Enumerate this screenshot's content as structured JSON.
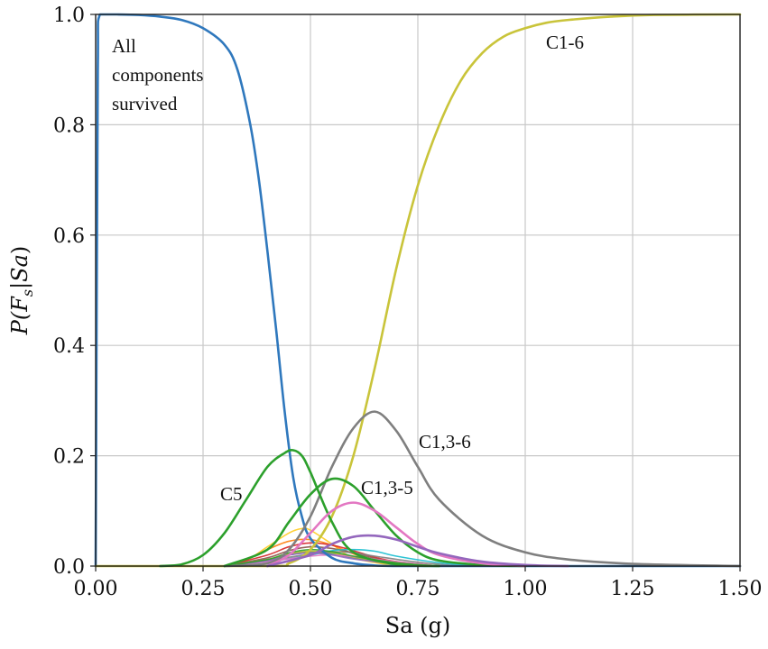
{
  "chart_data": {
    "type": "line",
    "title": "",
    "xlabel": "Sa (g)",
    "ylabel": "P(F_s|Sa)",
    "ylabel_parts": {
      "p": "P(",
      "f": "F",
      "s": "s",
      "mid": "|",
      "sa": "Sa",
      "close": ")"
    },
    "xlim": [
      0.0,
      1.5
    ],
    "ylim": [
      0.0,
      1.0
    ],
    "grid": true,
    "x_ticks": [
      "0.00",
      "0.25",
      "0.50",
      "0.75",
      "1.00",
      "1.25",
      "1.50"
    ],
    "y_ticks": [
      "0.0",
      "0.2",
      "0.4",
      "0.6",
      "0.8",
      "1.0"
    ],
    "annotations": {
      "all_line1": "All",
      "all_line2": "components",
      "all_line3": "survived",
      "c16": "C1-6",
      "c136": "C1,3-6",
      "c135": "C1,3-5",
      "c5": "C5"
    },
    "series": [
      {
        "id": "all-survived",
        "color": "#2f78bd",
        "x": [
          0.0,
          0.005,
          0.01,
          0.05,
          0.1,
          0.15,
          0.2,
          0.25,
          0.3,
          0.33,
          0.36,
          0.38,
          0.4,
          0.42,
          0.44,
          0.46,
          0.48,
          0.5,
          0.55,
          0.6,
          0.65,
          0.7,
          0.75,
          0.8,
          0.9,
          1.0,
          1.5
        ],
        "values": [
          0.0,
          0.9,
          1.0,
          1.0,
          0.999,
          0.996,
          0.99,
          0.975,
          0.945,
          0.9,
          0.8,
          0.7,
          0.57,
          0.43,
          0.28,
          0.16,
          0.09,
          0.05,
          0.015,
          0.005,
          0.001,
          0.0,
          0.0,
          0.0,
          0.0,
          0.0,
          0.0
        ]
      },
      {
        "id": "c1-6",
        "color": "#c9c43a",
        "x": [
          0.0,
          0.4,
          0.45,
          0.5,
          0.55,
          0.6,
          0.65,
          0.7,
          0.75,
          0.8,
          0.85,
          0.9,
          0.95,
          1.0,
          1.05,
          1.1,
          1.2,
          1.3,
          1.5
        ],
        "values": [
          0.0,
          0.0,
          0.005,
          0.03,
          0.09,
          0.2,
          0.36,
          0.54,
          0.69,
          0.8,
          0.88,
          0.93,
          0.96,
          0.975,
          0.985,
          0.99,
          0.996,
          0.999,
          1.0
        ]
      },
      {
        "id": "c1-3-6",
        "color": "#7f7f7f",
        "x": [
          0.3,
          0.4,
          0.45,
          0.5,
          0.55,
          0.6,
          0.65,
          0.7,
          0.75,
          0.8,
          0.9,
          1.0,
          1.1,
          1.25,
          1.5
        ],
        "values": [
          0.0,
          0.005,
          0.03,
          0.09,
          0.18,
          0.25,
          0.28,
          0.245,
          0.18,
          0.12,
          0.055,
          0.025,
          0.012,
          0.004,
          0.0
        ]
      },
      {
        "id": "c5",
        "color": "#2ca02c",
        "x": [
          0.15,
          0.2,
          0.25,
          0.3,
          0.35,
          0.4,
          0.44,
          0.46,
          0.48,
          0.5,
          0.55,
          0.6,
          0.7,
          0.8
        ],
        "values": [
          0.0,
          0.003,
          0.02,
          0.06,
          0.12,
          0.18,
          0.205,
          0.21,
          0.2,
          0.17,
          0.08,
          0.025,
          0.003,
          0.0
        ]
      },
      {
        "id": "c1-3-5",
        "color": "#2ca02c",
        "x": [
          0.3,
          0.4,
          0.45,
          0.5,
          0.55,
          0.6,
          0.65,
          0.7,
          0.75,
          0.8,
          0.9,
          1.0
        ],
        "values": [
          0.0,
          0.03,
          0.08,
          0.13,
          0.158,
          0.145,
          0.1,
          0.055,
          0.025,
          0.01,
          0.002,
          0.0
        ]
      },
      {
        "id": "pink",
        "color": "#e377c2",
        "x": [
          0.4,
          0.45,
          0.5,
          0.55,
          0.6,
          0.65,
          0.7,
          0.75,
          0.8,
          0.9,
          1.0
        ],
        "values": [
          0.0,
          0.02,
          0.06,
          0.1,
          0.115,
          0.1,
          0.07,
          0.04,
          0.02,
          0.005,
          0.0
        ]
      },
      {
        "id": "purple",
        "color": "#9467bd",
        "x": [
          0.4,
          0.5,
          0.55,
          0.6,
          0.65,
          0.7,
          0.75,
          0.8,
          0.9,
          1.0,
          1.1
        ],
        "values": [
          0.0,
          0.02,
          0.04,
          0.053,
          0.055,
          0.048,
          0.035,
          0.023,
          0.008,
          0.002,
          0.0
        ]
      },
      {
        "id": "yellow-small",
        "color": "#ffcc22",
        "x": [
          0.3,
          0.35,
          0.4,
          0.45,
          0.48,
          0.5,
          0.55,
          0.6,
          0.7
        ],
        "values": [
          0.0,
          0.01,
          0.035,
          0.06,
          0.068,
          0.065,
          0.04,
          0.015,
          0.0
        ]
      },
      {
        "id": "orange",
        "color": "#ff7f0e",
        "x": [
          0.3,
          0.35,
          0.4,
          0.45,
          0.5,
          0.55,
          0.6,
          0.65,
          0.75
        ],
        "values": [
          0.0,
          0.012,
          0.03,
          0.045,
          0.048,
          0.038,
          0.022,
          0.01,
          0.0
        ]
      },
      {
        "id": "red",
        "color": "#d62728",
        "x": [
          0.3,
          0.4,
          0.45,
          0.5,
          0.55,
          0.6,
          0.65,
          0.7,
          0.8
        ],
        "values": [
          0.0,
          0.02,
          0.035,
          0.042,
          0.038,
          0.028,
          0.016,
          0.008,
          0.0
        ]
      },
      {
        "id": "brown",
        "color": "#8c564b",
        "x": [
          0.3,
          0.4,
          0.45,
          0.5,
          0.55,
          0.6,
          0.65,
          0.7,
          0.8
        ],
        "values": [
          0.0,
          0.015,
          0.028,
          0.035,
          0.032,
          0.024,
          0.014,
          0.006,
          0.0
        ]
      },
      {
        "id": "cyan",
        "color": "#17becf",
        "x": [
          0.3,
          0.4,
          0.5,
          0.55,
          0.6,
          0.65,
          0.7,
          0.8,
          0.9
        ],
        "values": [
          0.0,
          0.008,
          0.02,
          0.028,
          0.03,
          0.027,
          0.018,
          0.006,
          0.0
        ]
      },
      {
        "id": "blue-small",
        "color": "#1f77b4",
        "x": [
          0.3,
          0.4,
          0.45,
          0.5,
          0.55,
          0.6,
          0.7,
          0.8
        ],
        "values": [
          0.0,
          0.01,
          0.02,
          0.025,
          0.022,
          0.015,
          0.005,
          0.0
        ]
      },
      {
        "id": "olive",
        "color": "#bcbd22",
        "x": [
          0.3,
          0.4,
          0.45,
          0.5,
          0.55,
          0.6,
          0.7,
          0.8
        ],
        "values": [
          0.0,
          0.012,
          0.022,
          0.027,
          0.024,
          0.016,
          0.006,
          0.0
        ]
      },
      {
        "id": "grey-small",
        "color": "#7f7f7f",
        "x": [
          0.3,
          0.4,
          0.5,
          0.55,
          0.6,
          0.65,
          0.75,
          0.85
        ],
        "values": [
          0.0,
          0.01,
          0.022,
          0.026,
          0.024,
          0.018,
          0.007,
          0.0
        ]
      },
      {
        "id": "pink-small",
        "color": "#e377c2",
        "x": [
          0.3,
          0.4,
          0.5,
          0.55,
          0.6,
          0.7,
          0.8
        ],
        "values": [
          0.0,
          0.008,
          0.018,
          0.02,
          0.017,
          0.008,
          0.0
        ]
      },
      {
        "id": "purple-small",
        "color": "#9467bd",
        "x": [
          0.3,
          0.4,
          0.45,
          0.5,
          0.55,
          0.6,
          0.7,
          0.8
        ],
        "values": [
          0.0,
          0.01,
          0.02,
          0.024,
          0.02,
          0.013,
          0.004,
          0.0
        ]
      },
      {
        "id": "green-small",
        "color": "#2ca02c",
        "x": [
          0.3,
          0.4,
          0.45,
          0.5,
          0.55,
          0.6,
          0.7,
          0.8
        ],
        "values": [
          0.0,
          0.012,
          0.024,
          0.03,
          0.026,
          0.018,
          0.006,
          0.0
        ]
      }
    ]
  }
}
